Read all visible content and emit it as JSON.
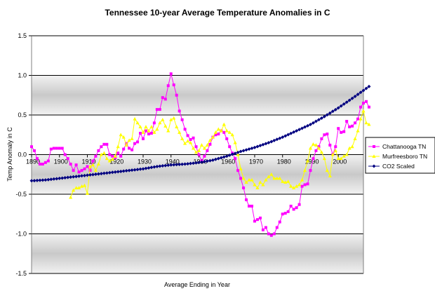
{
  "chart_data": {
    "type": "line",
    "title": "Tennessee 10-year Average Temperature Anomalies in C",
    "xlabel": "Average Ending in Year",
    "ylabel": "Temp Anomaly in C",
    "ylim": [
      -1.5,
      1.5
    ],
    "xlim": [
      1890,
      2009
    ],
    "y_ticks": [
      "1.5",
      "1.0",
      "0.5",
      "0.0",
      "-0.5",
      "-1.0",
      "-1.5"
    ],
    "x_ticks": [
      "1890",
      "1900",
      "1910",
      "1920",
      "1930",
      "1940",
      "1950",
      "1960",
      "1970",
      "1980",
      "1990",
      "2000"
    ],
    "grid": true,
    "legend_position": "right",
    "series": [
      {
        "name": "Chattanooga TN",
        "color": "#ff00ff",
        "marker": "square",
        "points": [
          [
            1890,
            0.1
          ],
          [
            1891,
            0.05
          ],
          [
            1892,
            -0.05
          ],
          [
            1893,
            -0.12
          ],
          [
            1894,
            -0.12
          ],
          [
            1895,
            -0.1
          ],
          [
            1896,
            -0.08
          ],
          [
            1897,
            0.07
          ],
          [
            1898,
            0.08
          ],
          [
            1899,
            0.08
          ],
          [
            1900,
            0.08
          ],
          [
            1901,
            0.08
          ],
          [
            1902,
            0.0
          ],
          [
            1903,
            -0.05
          ],
          [
            1904,
            -0.12
          ],
          [
            1905,
            -0.2
          ],
          [
            1906,
            -0.13
          ],
          [
            1907,
            -0.22
          ],
          [
            1908,
            -0.2
          ],
          [
            1909,
            -0.18
          ],
          [
            1910,
            -0.15
          ],
          [
            1911,
            -0.2
          ],
          [
            1912,
            -0.08
          ],
          [
            1913,
            -0.02
          ],
          [
            1914,
            0.05
          ],
          [
            1915,
            0.1
          ],
          [
            1916,
            0.13
          ],
          [
            1917,
            0.13
          ],
          [
            1918,
            0.0
          ],
          [
            1919,
            -0.02
          ],
          [
            1920,
            -0.04
          ],
          [
            1921,
            0.02
          ],
          [
            1922,
            -0.02
          ],
          [
            1923,
            0.07
          ],
          [
            1924,
            0.14
          ],
          [
            1925,
            0.08
          ],
          [
            1926,
            0.06
          ],
          [
            1927,
            0.14
          ],
          [
            1928,
            0.16
          ],
          [
            1929,
            0.27
          ],
          [
            1930,
            0.2
          ],
          [
            1931,
            0.3
          ],
          [
            1932,
            0.26
          ],
          [
            1933,
            0.27
          ],
          [
            1934,
            0.4
          ],
          [
            1935,
            0.57
          ],
          [
            1936,
            0.57
          ],
          [
            1937,
            0.72
          ],
          [
            1938,
            0.7
          ],
          [
            1939,
            0.87
          ],
          [
            1940,
            1.02
          ],
          [
            1941,
            0.88
          ],
          [
            1942,
            0.75
          ],
          [
            1943,
            0.55
          ],
          [
            1944,
            0.44
          ],
          [
            1945,
            0.32
          ],
          [
            1946,
            0.24
          ],
          [
            1947,
            0.19
          ],
          [
            1948,
            0.21
          ],
          [
            1949,
            0.1
          ],
          [
            1950,
            0.0
          ],
          [
            1951,
            -0.08
          ],
          [
            1952,
            -0.02
          ],
          [
            1953,
            0.05
          ],
          [
            1954,
            0.13
          ],
          [
            1955,
            0.22
          ],
          [
            1956,
            0.25
          ],
          [
            1957,
            0.26
          ],
          [
            1958,
            0.3
          ],
          [
            1959,
            0.28
          ],
          [
            1960,
            0.2
          ],
          [
            1961,
            0.1
          ],
          [
            1962,
            0.02
          ],
          [
            1963,
            -0.05
          ],
          [
            1964,
            -0.2
          ],
          [
            1965,
            -0.3
          ],
          [
            1966,
            -0.42
          ],
          [
            1967,
            -0.57
          ],
          [
            1968,
            -0.65
          ],
          [
            1969,
            -0.65
          ],
          [
            1970,
            -0.84
          ],
          [
            1971,
            -0.82
          ],
          [
            1972,
            -0.8
          ],
          [
            1973,
            -0.95
          ],
          [
            1974,
            -0.92
          ],
          [
            1975,
            -1.0
          ],
          [
            1976,
            -1.02
          ],
          [
            1977,
            -1.0
          ],
          [
            1978,
            -0.92
          ],
          [
            1979,
            -0.85
          ],
          [
            1980,
            -0.75
          ],
          [
            1981,
            -0.74
          ],
          [
            1982,
            -0.72
          ],
          [
            1983,
            -0.65
          ],
          [
            1984,
            -0.69
          ],
          [
            1985,
            -0.67
          ],
          [
            1986,
            -0.63
          ],
          [
            1987,
            -0.4
          ],
          [
            1988,
            -0.38
          ],
          [
            1989,
            -0.37
          ],
          [
            1990,
            -0.2
          ],
          [
            1991,
            -0.05
          ],
          [
            1992,
            0.05
          ],
          [
            1993,
            0.1
          ],
          [
            1994,
            0.2
          ],
          [
            1995,
            0.25
          ],
          [
            1996,
            0.26
          ],
          [
            1997,
            0.12
          ],
          [
            1998,
            0.0
          ],
          [
            1999,
            0.1
          ],
          [
            2000,
            0.33
          ],
          [
            2001,
            0.28
          ],
          [
            2002,
            0.29
          ],
          [
            2003,
            0.42
          ],
          [
            2004,
            0.35
          ],
          [
            2005,
            0.36
          ],
          [
            2006,
            0.4
          ],
          [
            2007,
            0.45
          ],
          [
            2008,
            0.6
          ],
          [
            2009,
            0.65
          ],
          [
            2010,
            0.67
          ],
          [
            2011,
            0.6
          ]
        ]
      },
      {
        "name": "Murfreesboro TN",
        "color": "#ffff00",
        "marker": "triangle",
        "points": [
          [
            1904,
            -0.54
          ],
          [
            1905,
            -0.45
          ],
          [
            1906,
            -0.42
          ],
          [
            1907,
            -0.42
          ],
          [
            1908,
            -0.4
          ],
          [
            1909,
            -0.39
          ],
          [
            1910,
            -0.49
          ],
          [
            1911,
            -0.15
          ],
          [
            1912,
            -0.13
          ],
          [
            1913,
            -0.2
          ],
          [
            1914,
            -0.12
          ],
          [
            1915,
            0.0
          ],
          [
            1916,
            0.02
          ],
          [
            1917,
            -0.05
          ],
          [
            1918,
            -0.08
          ],
          [
            1919,
            -0.06
          ],
          [
            1920,
            -0.02
          ],
          [
            1921,
            0.1
          ],
          [
            1922,
            0.25
          ],
          [
            1923,
            0.22
          ],
          [
            1924,
            0.12
          ],
          [
            1925,
            0.18
          ],
          [
            1926,
            0.2
          ],
          [
            1927,
            0.45
          ],
          [
            1928,
            0.4
          ],
          [
            1929,
            0.35
          ],
          [
            1930,
            0.28
          ],
          [
            1931,
            0.35
          ],
          [
            1932,
            0.3
          ],
          [
            1933,
            0.35
          ],
          [
            1934,
            0.28
          ],
          [
            1935,
            0.32
          ],
          [
            1936,
            0.4
          ],
          [
            1937,
            0.44
          ],
          [
            1938,
            0.36
          ],
          [
            1939,
            0.3
          ],
          [
            1940,
            0.44
          ],
          [
            1941,
            0.46
          ],
          [
            1942,
            0.35
          ],
          [
            1943,
            0.28
          ],
          [
            1944,
            0.2
          ],
          [
            1945,
            0.14
          ],
          [
            1946,
            0.17
          ],
          [
            1947,
            0.15
          ],
          [
            1948,
            0.08
          ],
          [
            1949,
            0.03
          ],
          [
            1950,
            0.05
          ],
          [
            1951,
            0.12
          ],
          [
            1952,
            0.08
          ],
          [
            1953,
            0.12
          ],
          [
            1954,
            0.18
          ],
          [
            1955,
            0.22
          ],
          [
            1956,
            0.28
          ],
          [
            1957,
            0.32
          ],
          [
            1958,
            0.3
          ],
          [
            1959,
            0.38
          ],
          [
            1960,
            0.3
          ],
          [
            1961,
            0.28
          ],
          [
            1962,
            0.25
          ],
          [
            1963,
            0.15
          ],
          [
            1964,
            0.0
          ],
          [
            1965,
            -0.18
          ],
          [
            1966,
            -0.3
          ],
          [
            1967,
            -0.35
          ],
          [
            1968,
            -0.32
          ],
          [
            1969,
            -0.32
          ],
          [
            1970,
            -0.38
          ],
          [
            1971,
            -0.42
          ],
          [
            1972,
            -0.35
          ],
          [
            1973,
            -0.38
          ],
          [
            1974,
            -0.32
          ],
          [
            1975,
            -0.28
          ],
          [
            1976,
            -0.25
          ],
          [
            1977,
            -0.3
          ],
          [
            1978,
            -0.3
          ],
          [
            1979,
            -0.3
          ],
          [
            1980,
            -0.34
          ],
          [
            1981,
            -0.35
          ],
          [
            1982,
            -0.34
          ],
          [
            1983,
            -0.4
          ],
          [
            1984,
            -0.42
          ],
          [
            1985,
            -0.4
          ],
          [
            1986,
            -0.38
          ],
          [
            1987,
            -0.32
          ],
          [
            1988,
            -0.2
          ],
          [
            1989,
            -0.08
          ],
          [
            1990,
            0.08
          ],
          [
            1991,
            0.13
          ],
          [
            1992,
            0.12
          ],
          [
            1993,
            0.08
          ],
          [
            1994,
            0.03
          ],
          [
            1995,
            -0.05
          ],
          [
            1996,
            -0.2
          ],
          [
            1997,
            -0.27
          ],
          [
            1998,
            0.0
          ],
          [
            1999,
            0.05
          ],
          [
            2000,
            -0.05
          ],
          [
            2001,
            -0.05
          ],
          [
            2002,
            -0.02
          ],
          [
            2003,
            0.0
          ],
          [
            2004,
            0.08
          ],
          [
            2005,
            0.1
          ],
          [
            2006,
            0.2
          ],
          [
            2007,
            0.3
          ],
          [
            2008,
            0.45
          ],
          [
            2009,
            0.55
          ],
          [
            2010,
            0.4
          ],
          [
            2011,
            0.38
          ]
        ]
      },
      {
        "name": "CO2 Scaled",
        "color": "#000080",
        "marker": "diamond",
        "formula_hint": "smooth rising curve from -0.33 (1890) to 0.86 (2011)",
        "points": [
          [
            1890,
            -0.33
          ],
          [
            1895,
            -0.32
          ],
          [
            1900,
            -0.3
          ],
          [
            1905,
            -0.28
          ],
          [
            1910,
            -0.26
          ],
          [
            1915,
            -0.24
          ],
          [
            1920,
            -0.22
          ],
          [
            1925,
            -0.2
          ],
          [
            1930,
            -0.18
          ],
          [
            1935,
            -0.15
          ],
          [
            1940,
            -0.13
          ],
          [
            1945,
            -0.12
          ],
          [
            1950,
            -0.1
          ],
          [
            1955,
            -0.07
          ],
          [
            1960,
            -0.02
          ],
          [
            1965,
            0.04
          ],
          [
            1970,
            0.09
          ],
          [
            1975,
            0.15
          ],
          [
            1980,
            0.22
          ],
          [
            1985,
            0.3
          ],
          [
            1990,
            0.38
          ],
          [
            1995,
            0.48
          ],
          [
            2000,
            0.59
          ],
          [
            2005,
            0.71
          ],
          [
            2011,
            0.86
          ]
        ]
      }
    ]
  }
}
